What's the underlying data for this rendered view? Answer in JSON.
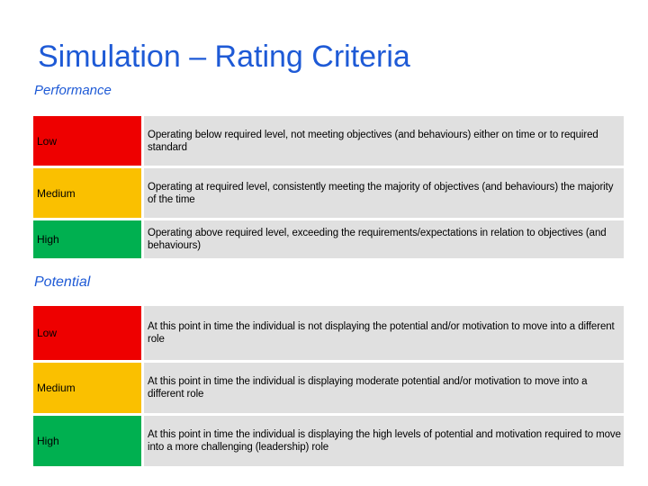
{
  "title": "Simulation – Rating Criteria",
  "colors": {
    "title": "#1e5ad6",
    "low": "#ee0000",
    "medium": "#fac000",
    "high": "#00b050",
    "description_bg": "#e0e0e0"
  },
  "performance": {
    "heading": "Performance",
    "rows": [
      {
        "level": "Low",
        "description": "Operating below required level, not meeting objectives (and behaviours) either on time or to required standard"
      },
      {
        "level": "Medium",
        "description": "Operating at required level, consistently meeting the majority of objectives (and behaviours) the majority of the time"
      },
      {
        "level": "High",
        "description": "Operating above required level, exceeding the requirements/expectations in relation to objectives (and behaviours)"
      }
    ]
  },
  "potential": {
    "heading": "Potential",
    "rows": [
      {
        "level": "Low",
        "description": "At this point in time the individual is not displaying the potential and/or motivation to move into a different role"
      },
      {
        "level": "Medium",
        "description": "At this point in time the individual is displaying moderate potential and/or motivation to move into a different role"
      },
      {
        "level": "High",
        "description": "At this point in time the individual is displaying the high levels of potential and motivation required to move into a  more challenging (leadership) role"
      }
    ]
  }
}
